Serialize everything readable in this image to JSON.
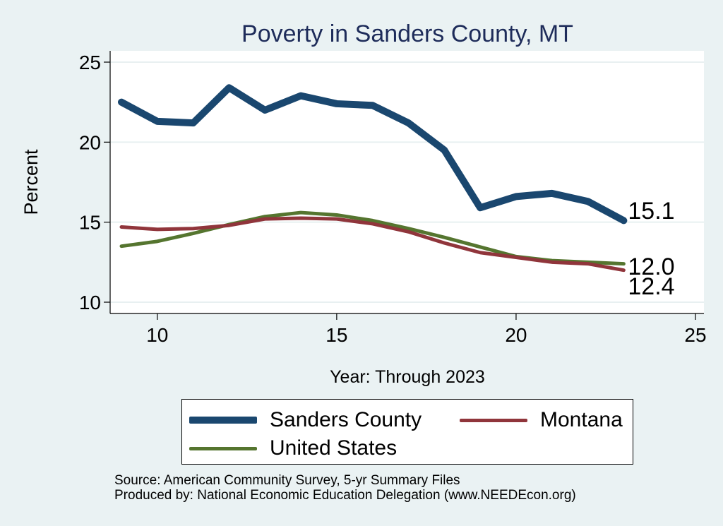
{
  "chart_data": {
    "type": "line",
    "title": "Poverty in Sanders County, MT",
    "xlabel": "Year: Through 2023",
    "ylabel": "Percent",
    "xlim": [
      9,
      25
    ],
    "ylim": [
      9.3,
      25.7
    ],
    "x_ticks": [
      10,
      15,
      20,
      25
    ],
    "y_ticks": [
      10,
      15,
      20,
      25
    ],
    "grid": true,
    "legend_position": "bottom",
    "x": [
      9,
      10,
      11,
      12,
      13,
      14,
      15,
      16,
      17,
      18,
      19,
      20,
      21,
      22,
      23
    ],
    "series": [
      {
        "name": "Sanders County",
        "color": "#1a476f",
        "values": [
          22.5,
          21.3,
          21.2,
          23.4,
          22.0,
          22.9,
          22.4,
          22.3,
          21.2,
          19.5,
          15.9,
          16.6,
          16.8,
          16.3,
          15.1
        ],
        "end_label": "15.1"
      },
      {
        "name": "Montana",
        "color": "#90353b",
        "values": [
          14.7,
          14.55,
          14.6,
          14.8,
          15.2,
          15.25,
          15.2,
          14.9,
          14.4,
          13.7,
          13.1,
          12.8,
          12.5,
          12.4,
          12.0
        ],
        "end_label": "12.0"
      },
      {
        "name": "United States",
        "color": "#55752f",
        "values": [
          13.5,
          13.8,
          14.3,
          14.85,
          15.35,
          15.6,
          15.45,
          15.1,
          14.6,
          14.05,
          13.45,
          12.85,
          12.6,
          12.5,
          12.4
        ],
        "end_label": "12.4"
      }
    ]
  },
  "legend": [
    {
      "label": "Sanders County",
      "color": "#1a476f"
    },
    {
      "label": "Montana",
      "color": "#90353b"
    },
    {
      "label": "United States",
      "color": "#55752f"
    }
  ],
  "notes": {
    "source": "Source: American Community Survey, 5-yr Summary Files",
    "produced": "Produced by: National Economic Education Delegation (www.NEEDEcon.org)"
  }
}
